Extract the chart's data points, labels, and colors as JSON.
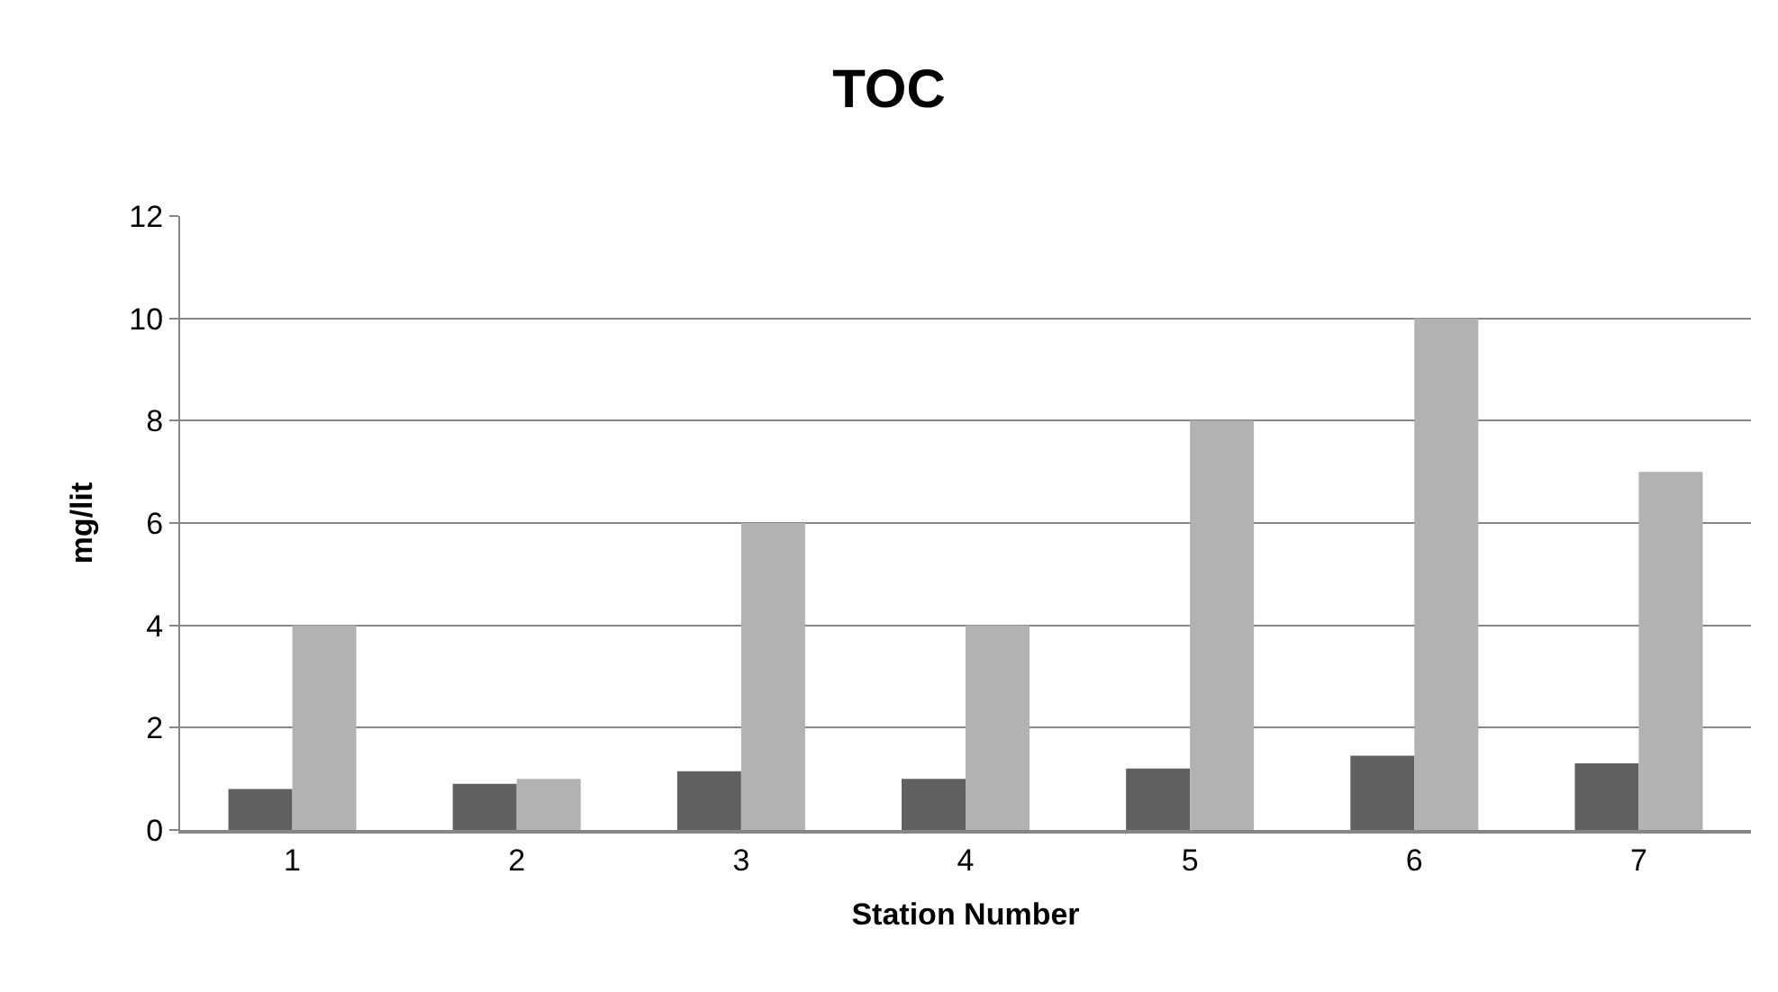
{
  "chart_data": {
    "type": "bar",
    "title": "TOC",
    "xlabel": "Station Number",
    "ylabel": "mg/lit",
    "categories": [
      "1",
      "2",
      "3",
      "4",
      "5",
      "6",
      "7"
    ],
    "series": [
      {
        "color": "#606060",
        "values": [
          0.8,
          0.9,
          1.15,
          1.0,
          1.2,
          1.45,
          1.3
        ]
      },
      {
        "color": "#b2b2b2",
        "values": [
          4,
          1,
          6,
          4,
          8,
          10,
          7
        ]
      }
    ],
    "ylim": [
      0,
      12
    ],
    "yticks": [
      0,
      2,
      4,
      6,
      8,
      10,
      12
    ],
    "grid": "y"
  }
}
